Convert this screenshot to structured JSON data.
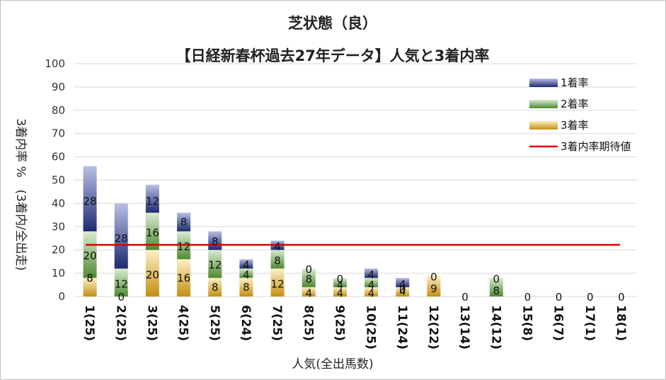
{
  "chart_data": {
    "type": "bar",
    "stacked": true,
    "title": "芝状態（良）",
    "subtitle": "【日経新春杯過去27年データ】人気と3着内率",
    "xlabel": "人気(全出馬数)",
    "ylabel": "3着内率 %　(3着内/全出走)",
    "ylim": [
      0,
      100
    ],
    "yticks": [
      0,
      10,
      20,
      30,
      40,
      50,
      60,
      70,
      80,
      90,
      100
    ],
    "grid": true,
    "legend_position": "top-right",
    "categories": [
      "1(25)",
      "2(25)",
      "3(25)",
      "4(25)",
      "5(25)",
      "6(24)",
      "7(25)",
      "8(25)",
      "9(25)",
      "10(25)",
      "11(24)",
      "12(22)",
      "13(14)",
      "14(12)",
      "15(8)",
      "16(7)",
      "17(1)",
      "18(1)"
    ],
    "series": [
      {
        "name": "3着率",
        "values": [
          8,
          0,
          20,
          16,
          8,
          8,
          12,
          4,
          4,
          4,
          4,
          9,
          0,
          0,
          0,
          0,
          0,
          0
        ],
        "color": "#c9a227"
      },
      {
        "name": "2着率",
        "values": [
          20,
          12,
          16,
          12,
          12,
          4,
          8,
          8,
          4,
          4,
          0,
          0,
          0,
          8,
          0,
          0,
          0,
          0
        ],
        "color": "#5e9b41"
      },
      {
        "name": "1着率",
        "values": [
          28,
          28,
          12,
          8,
          8,
          4,
          4,
          0,
          0,
          4,
          4,
          0,
          0,
          0,
          0,
          0,
          0,
          0
        ],
        "color": "#2b3a8a"
      }
    ],
    "reference_line": {
      "name": "3着内率期待値",
      "value": 22.2,
      "color": "#e00000"
    },
    "data_labels": [
      [
        [
          "8",
          8.2
        ],
        [
          "20",
          17.8
        ],
        [
          "28",
          41.2
        ]
      ],
      [
        [
          "0",
          0
        ],
        [
          "12",
          5.6
        ],
        [
          "28",
          25.2
        ]
      ],
      [
        [
          "20",
          9.6
        ],
        [
          "16",
          27.6
        ],
        [
          "12",
          41.2
        ]
      ],
      [
        [
          "16",
          8.2
        ],
        [
          "12",
          21.8
        ],
        [
          "8",
          32.2
        ]
      ],
      [
        [
          "8",
          4.2
        ],
        [
          "12",
          13.8
        ],
        [
          "8",
          23.8
        ]
      ],
      [
        [
          "8",
          4.2
        ],
        [
          "4",
          9.6
        ],
        [
          "4",
          13.8
        ]
      ],
      [
        [
          "12",
          5.6
        ],
        [
          "8",
          15.6
        ],
        [
          "4",
          21.8
        ]
      ],
      [
        [
          "4",
          1.6
        ],
        [
          "8",
          7.8
        ],
        [
          "0",
          11.8
        ]
      ],
      [
        [
          "4",
          1.6
        ],
        [
          "4",
          5.2
        ],
        [
          "0",
          7.8
        ]
      ],
      [
        [
          "4",
          1.6
        ],
        [
          "4",
          5.2
        ],
        [
          "4",
          9.6
        ]
      ],
      [
        [
          "4",
          2.4
        ],
        [
          "0",
          3.2
        ],
        [
          "4",
          5.4
        ]
      ],
      [
        [
          "9",
          3.6
        ],
        [
          "0",
          8.6
        ]
      ],
      [
        [
          "0",
          0
        ]
      ],
      [
        [
          "8",
          2.8
        ],
        [
          "0",
          7.8
        ]
      ],
      [
        [
          "0",
          0
        ]
      ],
      [
        [
          "0",
          0
        ]
      ],
      [
        [
          "0",
          0
        ]
      ],
      [
        [
          "0",
          0
        ]
      ]
    ]
  }
}
